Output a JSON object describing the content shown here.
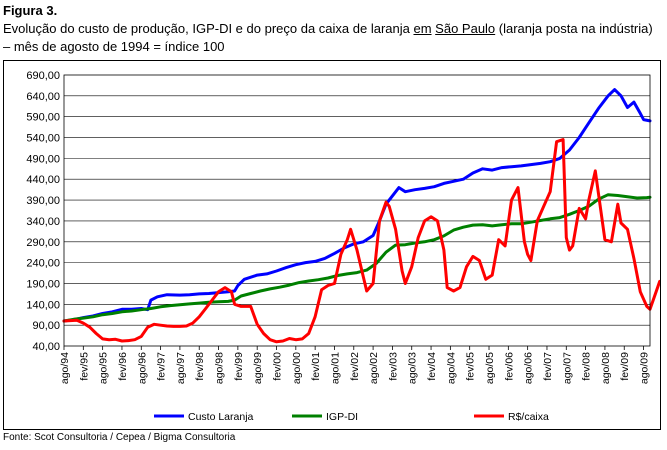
{
  "figure_label": "Figura 3.",
  "caption": {
    "before": "Evolução do custo de produção, IGP-DI e do preço da caixa de laranja ",
    "underlined_1": "em",
    "middle": " ",
    "underlined_2": "São Paulo",
    "after": " (laranja posta na indústria) – mês de agosto de 1994 = índice 100"
  },
  "source": "Fonte: Scot Consultoria / Cepea /  Bigma Consultoria",
  "chart_data": {
    "type": "line",
    "ylim": [
      40,
      690
    ],
    "yticks": [
      "690,00",
      "640,00",
      "590,00",
      "540,00",
      "490,00",
      "440,00",
      "390,00",
      "340,00",
      "290,00",
      "240,00",
      "190,00",
      "140,00",
      "90,00",
      "40,00"
    ],
    "xticks": [
      "ago/94",
      "fev/95",
      "ago/95",
      "fev/96",
      "ago/96",
      "fev/97",
      "ago/97",
      "fev/98",
      "ago/98",
      "fev/99",
      "ago/99",
      "fev/00",
      "ago/00",
      "fev/01",
      "ago/01",
      "fev/02",
      "ago/02",
      "fev/03",
      "ago/03",
      "fev/04",
      "ago/04",
      "fev/05",
      "ago/05",
      "fev/06",
      "ago/06",
      "fev/07",
      "ago/07",
      "fev/08",
      "ago/08",
      "fev/09",
      "ago/09"
    ],
    "x_start": "1994-08",
    "x_end": "2009-10",
    "grid": true,
    "legend_position": "bottom",
    "series": [
      {
        "name": "Custo Laranja",
        "color": "#0000ff",
        "points": [
          [
            "1994-08",
            100
          ],
          [
            "1994-11",
            103
          ],
          [
            "1995-02",
            108
          ],
          [
            "1995-05",
            112
          ],
          [
            "1995-08",
            118
          ],
          [
            "1995-11",
            122
          ],
          [
            "1996-02",
            128
          ],
          [
            "1996-05",
            128
          ],
          [
            "1996-08",
            130
          ],
          [
            "1996-10",
            127
          ],
          [
            "1996-11",
            150
          ],
          [
            "1997-01",
            158
          ],
          [
            "1997-04",
            163
          ],
          [
            "1997-08",
            162
          ],
          [
            "1997-11",
            163
          ],
          [
            "1998-02",
            165
          ],
          [
            "1998-05",
            166
          ],
          [
            "1998-08",
            168
          ],
          [
            "1998-11",
            170
          ],
          [
            "1999-01",
            172
          ],
          [
            "1999-02",
            185
          ],
          [
            "1999-04",
            200
          ],
          [
            "1999-08",
            210
          ],
          [
            "1999-11",
            213
          ],
          [
            "2000-02",
            220
          ],
          [
            "2000-05",
            228
          ],
          [
            "2000-08",
            235
          ],
          [
            "2000-11",
            240
          ],
          [
            "2001-02",
            243
          ],
          [
            "2001-05",
            250
          ],
          [
            "2001-08",
            262
          ],
          [
            "2001-11",
            275
          ],
          [
            "2002-02",
            285
          ],
          [
            "2002-05",
            290
          ],
          [
            "2002-08",
            305
          ],
          [
            "2002-10",
            340
          ],
          [
            "2002-12",
            380
          ],
          [
            "2003-02",
            400
          ],
          [
            "2003-04",
            420
          ],
          [
            "2003-06",
            410
          ],
          [
            "2003-09",
            415
          ],
          [
            "2003-12",
            418
          ],
          [
            "2004-03",
            422
          ],
          [
            "2004-06",
            430
          ],
          [
            "2004-09",
            435
          ],
          [
            "2004-12",
            440
          ],
          [
            "2005-03",
            455
          ],
          [
            "2005-06",
            465
          ],
          [
            "2005-09",
            462
          ],
          [
            "2005-12",
            468
          ],
          [
            "2006-03",
            470
          ],
          [
            "2006-06",
            472
          ],
          [
            "2006-09",
            475
          ],
          [
            "2006-12",
            478
          ],
          [
            "2007-03",
            482
          ],
          [
            "2007-06",
            490
          ],
          [
            "2007-09",
            510
          ],
          [
            "2007-12",
            540
          ],
          [
            "2008-03",
            575
          ],
          [
            "2008-06",
            610
          ],
          [
            "2008-09",
            640
          ],
          [
            "2008-11",
            655
          ],
          [
            "2009-01",
            640
          ],
          [
            "2009-03",
            612
          ],
          [
            "2009-05",
            625
          ],
          [
            "2009-07",
            598
          ],
          [
            "2009-08",
            583
          ],
          [
            "2009-10",
            580
          ]
        ]
      },
      {
        "name": "IGP-DI",
        "color": "#008000",
        "points": [
          [
            "1994-08",
            100
          ],
          [
            "1994-11",
            104
          ],
          [
            "1995-02",
            107
          ],
          [
            "1995-05",
            110
          ],
          [
            "1995-08",
            115
          ],
          [
            "1995-11",
            118
          ],
          [
            "1996-02",
            122
          ],
          [
            "1996-05",
            124
          ],
          [
            "1996-08",
            127
          ],
          [
            "1996-11",
            130
          ],
          [
            "1997-02",
            134
          ],
          [
            "1997-05",
            137
          ],
          [
            "1997-08",
            139
          ],
          [
            "1997-11",
            141
          ],
          [
            "1998-02",
            143
          ],
          [
            "1998-05",
            145
          ],
          [
            "1998-08",
            146
          ],
          [
            "1998-11",
            147
          ],
          [
            "1999-01",
            150
          ],
          [
            "1999-03",
            160
          ],
          [
            "1999-06",
            166
          ],
          [
            "1999-09",
            172
          ],
          [
            "1999-12",
            177
          ],
          [
            "2000-03",
            181
          ],
          [
            "2000-06",
            186
          ],
          [
            "2000-09",
            192
          ],
          [
            "2000-12",
            196
          ],
          [
            "2001-03",
            199
          ],
          [
            "2001-06",
            203
          ],
          [
            "2001-09",
            209
          ],
          [
            "2001-12",
            213
          ],
          [
            "2002-03",
            216
          ],
          [
            "2002-06",
            222
          ],
          [
            "2002-09",
            238
          ],
          [
            "2002-12",
            265
          ],
          [
            "2003-03",
            282
          ],
          [
            "2003-06",
            283
          ],
          [
            "2003-09",
            287
          ],
          [
            "2003-12",
            290
          ],
          [
            "2004-03",
            295
          ],
          [
            "2004-06",
            304
          ],
          [
            "2004-09",
            318
          ],
          [
            "2004-12",
            325
          ],
          [
            "2005-03",
            330
          ],
          [
            "2005-06",
            331
          ],
          [
            "2005-09",
            328
          ],
          [
            "2005-12",
            331
          ],
          [
            "2006-03",
            333
          ],
          [
            "2006-06",
            333
          ],
          [
            "2006-09",
            337
          ],
          [
            "2006-12",
            341
          ],
          [
            "2007-03",
            345
          ],
          [
            "2007-06",
            348
          ],
          [
            "2007-09",
            356
          ],
          [
            "2007-12",
            365
          ],
          [
            "2008-03",
            375
          ],
          [
            "2008-06",
            392
          ],
          [
            "2008-09",
            403
          ],
          [
            "2008-12",
            401
          ],
          [
            "2009-03",
            398
          ],
          [
            "2009-06",
            395
          ],
          [
            "2009-09",
            396
          ],
          [
            "2009-10",
            397
          ]
        ]
      },
      {
        "name": "R$/caixa",
        "color": "#ff0000",
        "points": [
          [
            "1994-08",
            100
          ],
          [
            "1994-10",
            101
          ],
          [
            "1994-12",
            102
          ],
          [
            "1995-02",
            95
          ],
          [
            "1995-04",
            85
          ],
          [
            "1995-06",
            70
          ],
          [
            "1995-08",
            57
          ],
          [
            "1995-10",
            55
          ],
          [
            "1995-12",
            56
          ],
          [
            "1996-02",
            52
          ],
          [
            "1996-04",
            53
          ],
          [
            "1996-06",
            55
          ],
          [
            "1996-08",
            63
          ],
          [
            "1996-10",
            85
          ],
          [
            "1996-12",
            92
          ],
          [
            "1997-02",
            90
          ],
          [
            "1997-04",
            88
          ],
          [
            "1997-06",
            87
          ],
          [
            "1997-08",
            87
          ],
          [
            "1997-10",
            88
          ],
          [
            "1997-12",
            95
          ],
          [
            "1998-02",
            110
          ],
          [
            "1998-04",
            130
          ],
          [
            "1998-06",
            150
          ],
          [
            "1998-08",
            170
          ],
          [
            "1998-10",
            180
          ],
          [
            "1998-12",
            170
          ],
          [
            "1999-01",
            140
          ],
          [
            "1999-03",
            135
          ],
          [
            "1999-06",
            135
          ],
          [
            "1999-08",
            92
          ],
          [
            "1999-10",
            70
          ],
          [
            "1999-12",
            55
          ],
          [
            "2000-02",
            50
          ],
          [
            "2000-04",
            52
          ],
          [
            "2000-06",
            58
          ],
          [
            "2000-08",
            55
          ],
          [
            "2000-10",
            57
          ],
          [
            "2000-12",
            70
          ],
          [
            "2001-02",
            110
          ],
          [
            "2001-04",
            175
          ],
          [
            "2001-06",
            185
          ],
          [
            "2001-08",
            190
          ],
          [
            "2001-10",
            260
          ],
          [
            "2001-12",
            295
          ],
          [
            "2002-01",
            320
          ],
          [
            "2002-03",
            270
          ],
          [
            "2002-05",
            205
          ],
          [
            "2002-06",
            172
          ],
          [
            "2002-08",
            190
          ],
          [
            "2002-10",
            340
          ],
          [
            "2002-12",
            385
          ],
          [
            "2003-01",
            375
          ],
          [
            "2003-03",
            320
          ],
          [
            "2003-05",
            220
          ],
          [
            "2003-06",
            190
          ],
          [
            "2003-08",
            230
          ],
          [
            "2003-10",
            300
          ],
          [
            "2003-12",
            340
          ],
          [
            "2004-02",
            350
          ],
          [
            "2004-04",
            340
          ],
          [
            "2004-06",
            270
          ],
          [
            "2004-07",
            180
          ],
          [
            "2004-09",
            172
          ],
          [
            "2004-11",
            180
          ],
          [
            "2005-01",
            230
          ],
          [
            "2005-03",
            255
          ],
          [
            "2005-05",
            245
          ],
          [
            "2005-07",
            200
          ],
          [
            "2005-09",
            210
          ],
          [
            "2005-11",
            295
          ],
          [
            "2006-01",
            280
          ],
          [
            "2006-03",
            390
          ],
          [
            "2006-05",
            420
          ],
          [
            "2006-07",
            290
          ],
          [
            "2006-08",
            260
          ],
          [
            "2006-09",
            245
          ],
          [
            "2006-11",
            340
          ],
          [
            "2007-01",
            375
          ],
          [
            "2007-03",
            410
          ],
          [
            "2007-04",
            470
          ],
          [
            "2007-05",
            530
          ],
          [
            "2007-07",
            535
          ],
          [
            "2007-08",
            300
          ],
          [
            "2007-09",
            270
          ],
          [
            "2007-10",
            280
          ],
          [
            "2007-12",
            370
          ],
          [
            "2008-02",
            345
          ],
          [
            "2008-03",
            390
          ],
          [
            "2008-05",
            460
          ],
          [
            "2008-07",
            350
          ],
          [
            "2008-08",
            295
          ],
          [
            "2008-10",
            290
          ],
          [
            "2008-12",
            380
          ],
          [
            "2009-01",
            335
          ],
          [
            "2009-03",
            320
          ],
          [
            "2009-05",
            250
          ],
          [
            "2009-07",
            170
          ],
          [
            "2009-09",
            135
          ],
          [
            "2009-10",
            128
          ],
          [
            "2009-11",
            150
          ],
          [
            "2010-01",
            195
          ]
        ]
      }
    ]
  }
}
